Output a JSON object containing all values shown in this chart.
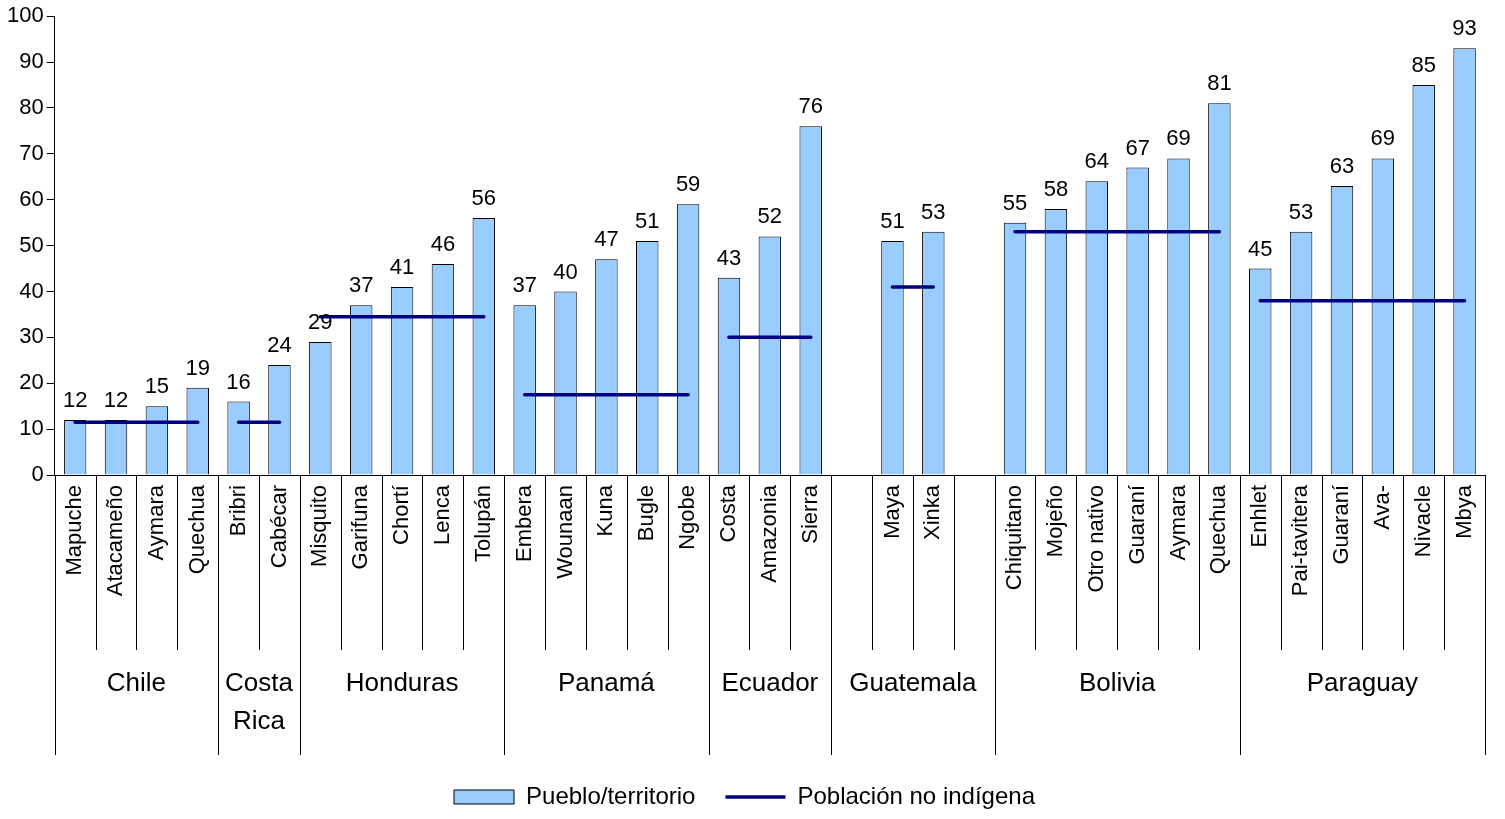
{
  "chart_data": {
    "type": "bar",
    "categories": [
      "Mapuche",
      "Atacameño",
      "Aymara",
      "Quechua",
      "Bribri",
      "Cabécar",
      "Misquito",
      "Garifuna",
      "Chortí",
      "Lenca",
      "Tolupán",
      "Embera",
      "Wounaan",
      "Kuna",
      "Bugle",
      "Ngobe",
      "Costa",
      "Amazonia",
      "Sierra",
      null,
      "Maya",
      "Xinka",
      null,
      "Chiquitano",
      "Mojeño",
      "Otro nativo",
      "Guaraní",
      "Aymara",
      "Quechua",
      "Enhlet",
      "Pai-tavitera",
      "Guaraní",
      "Ava-",
      "Nivacle",
      "Mbya"
    ],
    "annotations": [
      "Chile",
      "Costa Rica",
      "Honduras",
      "Panamá",
      "Ecuador",
      "Guatemala",
      "Bolivia",
      "Paraguay"
    ],
    "series": [
      {
        "name": "Pueblo/territorio",
        "color": "#99ccff",
        "values": [
          12,
          12,
          15,
          19,
          16,
          24,
          29,
          37,
          41,
          46,
          56,
          37,
          40,
          47,
          51,
          59,
          43,
          52,
          76,
          null,
          51,
          53,
          null,
          55,
          58,
          64,
          67,
          69,
          81,
          45,
          53,
          63,
          69,
          85,
          93
        ],
        "value_labels": [
          "12",
          "12",
          "15",
          "19",
          "16",
          "24",
          "29",
          "37",
          "41",
          "46",
          "56",
          "37",
          "40",
          "47",
          "51",
          "59",
          "43",
          "52",
          "76",
          null,
          "51",
          "53",
          null,
          "55",
          "58",
          "64",
          "67",
          "69",
          "81",
          "45",
          "53",
          "63",
          "69",
          "85",
          "93"
        ]
      },
      {
        "name": "Población no indígena",
        "type": "line",
        "color": "#000080",
        "values": [
          11.5,
          11.5,
          11.5,
          11.5,
          null,
          null,
          null,
          null,
          null,
          null,
          null,
          null,
          null,
          null,
          null,
          null,
          null,
          null,
          null,
          null,
          null,
          null,
          null,
          null,
          null,
          null,
          null,
          null,
          null,
          null,
          null,
          null,
          null,
          null,
          null
        ]
      },
      {
        "type": "line",
        "color": "#000080",
        "values": [
          null,
          null,
          null,
          null,
          11.5,
          11.5,
          null,
          null,
          null,
          null,
          null,
          null,
          null,
          null,
          null,
          null,
          null,
          null,
          null,
          null,
          null,
          null,
          null,
          null,
          null,
          null,
          null,
          null,
          null,
          null,
          null,
          null,
          null,
          null,
          null
        ]
      },
      {
        "type": "line",
        "color": "#000080",
        "values": [
          null,
          null,
          null,
          null,
          null,
          null,
          34.5,
          34.5,
          34.5,
          34.5,
          34.5,
          null,
          null,
          null,
          null,
          null,
          null,
          null,
          null,
          null,
          null,
          null,
          null,
          null,
          null,
          null,
          null,
          null,
          null,
          null,
          null,
          null,
          null,
          null,
          null
        ]
      },
      {
        "type": "line",
        "color": "#000080",
        "values": [
          null,
          null,
          null,
          null,
          null,
          null,
          null,
          null,
          null,
          null,
          null,
          17.5,
          17.5,
          17.5,
          17.5,
          17.5,
          null,
          null,
          null,
          null,
          null,
          null,
          null,
          null,
          null,
          null,
          null,
          null,
          null,
          null,
          null,
          null,
          null,
          null,
          null
        ]
      },
      {
        "type": "line",
        "color": "#000080",
        "values": [
          null,
          null,
          null,
          null,
          null,
          null,
          null,
          null,
          null,
          null,
          null,
          null,
          null,
          null,
          null,
          null,
          30,
          30,
          30,
          null,
          null,
          null,
          null,
          null,
          null,
          null,
          null,
          null,
          null,
          null,
          null,
          null,
          null,
          null,
          null
        ]
      },
      {
        "type": "line",
        "color": "#000080",
        "values": [
          null,
          null,
          null,
          null,
          null,
          null,
          null,
          null,
          null,
          null,
          null,
          null,
          null,
          null,
          null,
          null,
          null,
          null,
          null,
          null,
          41,
          41,
          null,
          null,
          null,
          null,
          null,
          null,
          null,
          null,
          null,
          null,
          null,
          null,
          null
        ]
      },
      {
        "type": "line",
        "color": "#000080",
        "values": [
          null,
          null,
          null,
          null,
          null,
          null,
          null,
          null,
          null,
          null,
          null,
          null,
          null,
          null,
          null,
          null,
          null,
          null,
          null,
          null,
          null,
          null,
          null,
          53,
          53,
          53,
          53,
          53,
          53,
          null,
          null,
          null,
          null,
          null,
          null
        ]
      },
      {
        "type": "line",
        "color": "#000080",
        "values": [
          null,
          null,
          null,
          null,
          null,
          null,
          null,
          null,
          null,
          null,
          null,
          null,
          null,
          null,
          null,
          null,
          null,
          null,
          null,
          null,
          null,
          null,
          null,
          null,
          null,
          null,
          null,
          null,
          null,
          38,
          38,
          38,
          38,
          38,
          38
        ]
      }
    ],
    "ylim": [
      0,
      100
    ],
    "yticks": [
      0,
      10,
      20,
      30,
      40,
      50,
      60,
      70,
      80,
      90,
      100
    ],
    "grid": false,
    "legend": "bottom",
    "marker": "none",
    "line_style": "solid"
  }
}
